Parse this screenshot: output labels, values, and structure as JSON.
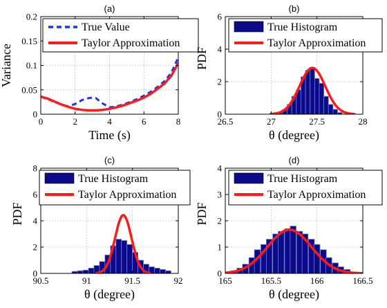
{
  "chart_data": [
    {
      "panel": "(a)",
      "type": "line",
      "xlabel": "Time (s)",
      "ylabel": "Variance",
      "xlim": [
        0,
        8
      ],
      "ylim": [
        0,
        0.2
      ],
      "xticks": [
        "0",
        "2",
        "4",
        "6",
        "8"
      ],
      "yticks": [
        "0",
        "0.05",
        "0.1",
        "0.15",
        "0.2"
      ],
      "grid": true,
      "legend_position": "top-left",
      "series": [
        {
          "name": "True Value",
          "style": "dashed",
          "color": "#1f35e0",
          "x": [
            0,
            0.4,
            0.8,
            1.2,
            1.6,
            2.0,
            2.4,
            2.8,
            3.0,
            3.2,
            3.6,
            4.0,
            4.4,
            4.8,
            5.2,
            5.6,
            6.0,
            6.4,
            6.8,
            7.2,
            7.6,
            8.0
          ],
          "y": [
            0.036,
            0.031,
            0.025,
            0.02,
            0.016,
            0.021,
            0.029,
            0.033,
            0.034,
            0.033,
            0.022,
            0.014,
            0.016,
            0.02,
            0.025,
            0.031,
            0.038,
            0.046,
            0.056,
            0.068,
            0.085,
            0.117
          ]
        },
        {
          "name": "Taylor Approximation",
          "style": "solid",
          "color": "#ff1a1a",
          "x": [
            0,
            0.4,
            0.8,
            1.2,
            1.6,
            2.0,
            2.4,
            2.8,
            3.2,
            3.6,
            4.0,
            4.4,
            4.8,
            5.2,
            5.6,
            6.0,
            6.4,
            6.8,
            7.2,
            7.6,
            8.0
          ],
          "y": [
            0.036,
            0.032,
            0.026,
            0.02,
            0.015,
            0.011,
            0.009,
            0.008,
            0.008,
            0.009,
            0.011,
            0.014,
            0.018,
            0.023,
            0.028,
            0.034,
            0.042,
            0.052,
            0.063,
            0.079,
            0.105
          ]
        }
      ]
    },
    {
      "panel": "(b)",
      "type": "bar",
      "xlabel": "θ (degree)",
      "ylabel": "PDF",
      "xlim": [
        26.5,
        28
      ],
      "ylim": [
        0,
        6
      ],
      "xticks": [
        "26.5",
        "27",
        "27.5",
        "28"
      ],
      "yticks": [
        "0",
        "2",
        "4",
        "6"
      ],
      "grid": true,
      "legend_position": "top",
      "series": [
        {
          "name": "True Histogram",
          "color": "#0b0b8a",
          "bin_width": 0.05,
          "bin_centers": [
            27.05,
            27.1,
            27.15,
            27.2,
            27.25,
            27.3,
            27.35,
            27.4,
            27.45,
            27.5,
            27.55,
            27.6,
            27.65,
            27.7,
            27.75
          ],
          "values": [
            0.05,
            0.12,
            0.3,
            0.6,
            1.1,
            1.5,
            2.3,
            2.7,
            2.8,
            2.2,
            1.9,
            1.1,
            0.6,
            0.3,
            0.1
          ]
        },
        {
          "name": "Taylor Approximation",
          "color": "#ff1a1a",
          "curve": "gaussian",
          "mean": 27.45,
          "std": 0.14
        }
      ]
    },
    {
      "panel": "(c)",
      "type": "bar",
      "xlabel": "θ (degree)",
      "ylabel": "PDF",
      "xlim": [
        90.5,
        92
      ],
      "ylim": [
        0,
        8
      ],
      "xticks": [
        "90.5",
        "91",
        "91.5",
        "92"
      ],
      "yticks": [
        "0",
        "2",
        "4",
        "6",
        "8"
      ],
      "grid": true,
      "legend_position": "top",
      "series": [
        {
          "name": "True Histogram",
          "color": "#0b0b8a",
          "bin_width": 0.06,
          "bin_centers": [
            90.87,
            90.93,
            90.99,
            91.05,
            91.11,
            91.17,
            91.23,
            91.29,
            91.35,
            91.41,
            91.47,
            91.53,
            91.59,
            91.65,
            91.71,
            91.77,
            91.83,
            91.89
          ],
          "values": [
            0.15,
            0.2,
            0.25,
            0.4,
            0.6,
            0.9,
            1.4,
            2.1,
            2.6,
            2.5,
            2.2,
            1.6,
            1.0,
            0.7,
            0.5,
            0.4,
            0.3,
            0.2
          ]
        },
        {
          "name": "Taylor Approximation",
          "color": "#ff1a1a",
          "curve": "gaussian",
          "mean": 91.4,
          "std": 0.09
        }
      ]
    },
    {
      "panel": "(d)",
      "type": "bar",
      "xlabel": "θ (degree)",
      "ylabel": "PDF",
      "xlim": [
        165,
        166.5
      ],
      "ylim": [
        0,
        4
      ],
      "xticks": [
        "165",
        "165.5",
        "166",
        "166.5"
      ],
      "yticks": [
        "0",
        "1",
        "2",
        "3",
        "4"
      ],
      "grid": true,
      "legend_position": "top",
      "series": [
        {
          "name": "True Histogram",
          "color": "#0b0b8a",
          "bin_width": 0.065,
          "bin_centers": [
            165.09,
            165.16,
            165.22,
            165.29,
            165.35,
            165.42,
            165.48,
            165.55,
            165.61,
            165.68,
            165.74,
            165.81,
            165.87,
            165.94,
            166.0,
            166.07,
            166.13,
            166.2,
            166.26,
            166.33
          ],
          "values": [
            0.1,
            0.2,
            0.35,
            0.6,
            0.9,
            1.1,
            1.3,
            1.5,
            1.6,
            1.7,
            1.8,
            1.6,
            1.5,
            1.3,
            1.1,
            0.9,
            0.6,
            0.4,
            0.25,
            0.15
          ]
        },
        {
          "name": "Taylor Approximation",
          "color": "#ff1a1a",
          "curve": "gaussian",
          "mean": 165.7,
          "std": 0.24
        }
      ]
    }
  ]
}
